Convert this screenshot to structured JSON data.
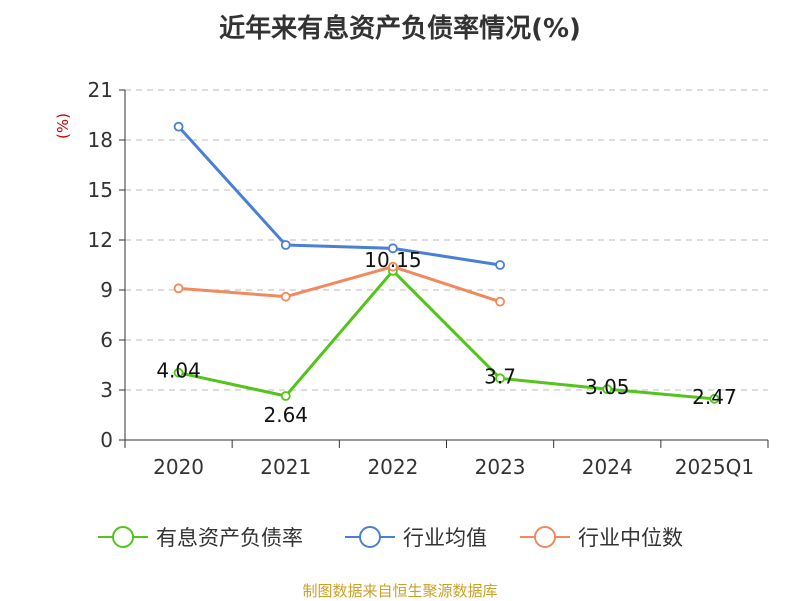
{
  "title": "近年来有息资产负债率情况(%)",
  "source": "制图数据来自恒生聚源数据库",
  "chart_data": {
    "type": "line",
    "title": "近年来有息资产负债率情况(%)",
    "ylabel": "(%)",
    "categories": [
      "2020",
      "2021",
      "2022",
      "2023",
      "2024",
      "2025Q1"
    ],
    "yticks": [
      0,
      3,
      6,
      9,
      12,
      15,
      18,
      21
    ],
    "ylim": [
      0,
      21
    ],
    "grid": true,
    "legend_position": "bottom",
    "series": [
      {
        "name": "有息资产负债率",
        "color": "#52c41a",
        "values": [
          4.04,
          2.64,
          10.15,
          3.7,
          3.05,
          2.47
        ],
        "labels": [
          "4.04",
          "2.64",
          "10.15",
          "3.7",
          "3.05",
          "2.47"
        ]
      },
      {
        "name": "行业均值",
        "color": "#4a7fd6",
        "values": [
          18.8,
          11.7,
          11.5,
          10.5,
          null,
          null
        ]
      },
      {
        "name": "行业中位数",
        "color": "#f08a5d",
        "values": [
          9.1,
          8.6,
          10.4,
          8.3,
          null,
          null
        ]
      }
    ]
  }
}
